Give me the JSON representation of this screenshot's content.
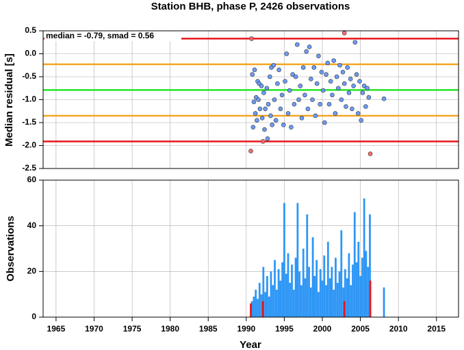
{
  "chart_data": [
    {
      "type": "scatter",
      "title": "Station BHB, phase P, 2426 observations",
      "ylabel": "Median residual [s]",
      "annotation": "median = -0.79, smad = 0.56",
      "xlim": [
        1963.3,
        2017.9
      ],
      "ylim": [
        -2.5,
        0.5
      ],
      "yticks": [
        0.5,
        {
          "value": 0,
          "label": "0.0"
        },
        -0.5,
        {
          "value": -1,
          "label": "-1.0"
        },
        -1.5,
        {
          "value": -2,
          "label": "-2.0"
        },
        -2.5
      ],
      "xticks": [
        1965,
        1970,
        1975,
        1980,
        1985,
        1990,
        1995,
        2000,
        2005,
        2010,
        2015
      ],
      "grid": true,
      "hlines": [
        {
          "value": 0.33,
          "color": "#e8141c"
        },
        {
          "value": -0.23,
          "color": "#f5a623"
        },
        {
          "value": -0.79,
          "color": "#22e622"
        },
        {
          "value": -1.35,
          "color": "#f5a623"
        },
        {
          "value": -1.91,
          "color": "#e8141c"
        }
      ],
      "series": [
        {
          "color": "#6c9cf5",
          "x": [
            1990.8,
            1990.9,
            1991.0,
            1991.1,
            1991.2,
            1991.3,
            1991.4,
            1991.5,
            1991.6,
            1991.7,
            1991.8,
            1992.0,
            1992.1,
            1992.3,
            1992.4,
            1992.5,
            1992.7,
            1992.8,
            1992.9,
            1993.1,
            1993.2,
            1993.3,
            1993.4,
            1993.6,
            1993.7,
            1993.9,
            1994.1,
            1994.3,
            1994.5,
            1994.7,
            1994.9,
            1995.1,
            1995.3,
            1995.5,
            1995.7,
            1995.9,
            1996.1,
            1996.3,
            1996.5,
            1996.7,
            1996.9,
            1997.1,
            1997.3,
            1997.5,
            1997.7,
            1997.9,
            1998.1,
            1998.3,
            1998.5,
            1998.7,
            1998.9,
            1999.1,
            1999.3,
            1999.5,
            1999.7,
            1999.9,
            2000.1,
            2000.3,
            2000.5,
            2000.7,
            2000.9,
            2001.1,
            2001.3,
            2001.5,
            2001.7,
            2001.9,
            2002.1,
            2002.3,
            2002.5,
            2002.7,
            2002.9,
            2003.1,
            2003.3,
            2003.5,
            2003.7,
            2003.9,
            2004.1,
            2004.3,
            2004.5,
            2004.7,
            2004.9,
            2005.1,
            2005.3,
            2005.5,
            2005.7,
            2005.9,
            2006.1,
            2008.1
          ],
          "values": [
            -0.45,
            -1.6,
            -1.05,
            -0.35,
            -1.3,
            -0.95,
            -1.45,
            -0.6,
            -1.0,
            -0.65,
            -1.2,
            -0.7,
            -1.4,
            -0.85,
            -1.65,
            -1.2,
            -0.75,
            -1.85,
            -1.1,
            -0.5,
            -1.35,
            -0.3,
            -1.55,
            -0.25,
            -1.0,
            -1.45,
            -0.65,
            -0.35,
            -1.2,
            -0.9,
            -1.55,
            -0.6,
            0.0,
            -1.3,
            -0.8,
            -1.6,
            -0.45,
            -1.1,
            -0.5,
            0.2,
            -1.0,
            -0.7,
            -1.4,
            -0.3,
            -0.9,
            0.05,
            -1.2,
            0.15,
            -0.55,
            -1.0,
            -0.3,
            -1.35,
            -0.65,
            -0.05,
            -1.1,
            -0.4,
            -0.8,
            -1.5,
            -0.45,
            -0.2,
            -1.1,
            -0.6,
            -0.9,
            -0.15,
            -1.3,
            -0.5,
            -0.75,
            -0.25,
            -1.0,
            -0.4,
            -0.65,
            -1.15,
            -0.3,
            -0.85,
            -0.55,
            -1.2,
            -0.7,
            0.25,
            -0.45,
            -1.3,
            -0.6,
            -1.45,
            -0.85,
            -0.7,
            -1.15,
            -0.75,
            -0.95,
            -0.98
          ]
        },
        {
          "color": "#f56c6c",
          "x": [
            1990.7,
            1990.6,
            1992.2,
            2002.9,
            2006.3
          ],
          "values": [
            0.33,
            -2.12,
            -1.91,
            0.45,
            -2.18
          ]
        }
      ]
    },
    {
      "type": "bar",
      "ylabel": "Observations",
      "xlabel": "Year",
      "xlim": [
        1963.3,
        2017.9
      ],
      "ylim": [
        0,
        60
      ],
      "yticks": [
        0,
        20,
        40,
        60
      ],
      "xticks": [
        1965,
        1970,
        1975,
        1980,
        1985,
        1990,
        1995,
        2000,
        2005,
        2010,
        2015
      ],
      "grid": true,
      "series": [
        {
          "color": "#2e96f5",
          "x": [
            1990.75,
            1991.0,
            1991.25,
            1991.5,
            1991.75,
            1992.0,
            1992.25,
            1992.5,
            1992.75,
            1993.0,
            1993.25,
            1993.5,
            1993.75,
            1994.0,
            1994.25,
            1994.5,
            1994.75,
            1995.0,
            1995.25,
            1995.5,
            1995.75,
            1996.0,
            1996.25,
            1996.5,
            1996.75,
            1997.0,
            1997.25,
            1997.5,
            1997.75,
            1998.0,
            1998.25,
            1998.5,
            1998.75,
            1999.0,
            1999.25,
            1999.5,
            1999.75,
            2000.0,
            2000.25,
            2000.5,
            2000.75,
            2001.0,
            2001.25,
            2001.5,
            2001.75,
            2002.0,
            2002.25,
            2002.5,
            2002.75,
            2003.0,
            2003.25,
            2003.5,
            2003.75,
            2004.0,
            2004.25,
            2004.5,
            2004.75,
            2005.0,
            2005.25,
            2005.5,
            2005.75,
            2006.0,
            2006.25,
            2008.1
          ],
          "values": [
            7,
            9,
            12,
            8,
            15,
            10,
            22,
            11,
            18,
            9,
            20,
            14,
            25,
            12,
            21,
            16,
            24,
            50,
            19,
            28,
            15,
            23,
            12,
            26,
            50,
            20,
            14,
            30,
            17,
            45,
            22,
            13,
            35,
            18,
            25,
            11,
            21,
            16,
            27,
            14,
            33,
            17,
            22,
            12,
            26,
            15,
            20,
            38,
            13,
            21,
            17,
            28,
            14,
            23,
            46,
            24,
            33,
            18,
            26,
            52,
            29,
            22,
            45,
            13
          ]
        },
        {
          "color": "#e8141c",
          "x": [
            1990.6,
            1992.2,
            2002.9,
            2006.3
          ],
          "values": [
            6,
            7,
            7,
            16
          ]
        }
      ]
    }
  ]
}
